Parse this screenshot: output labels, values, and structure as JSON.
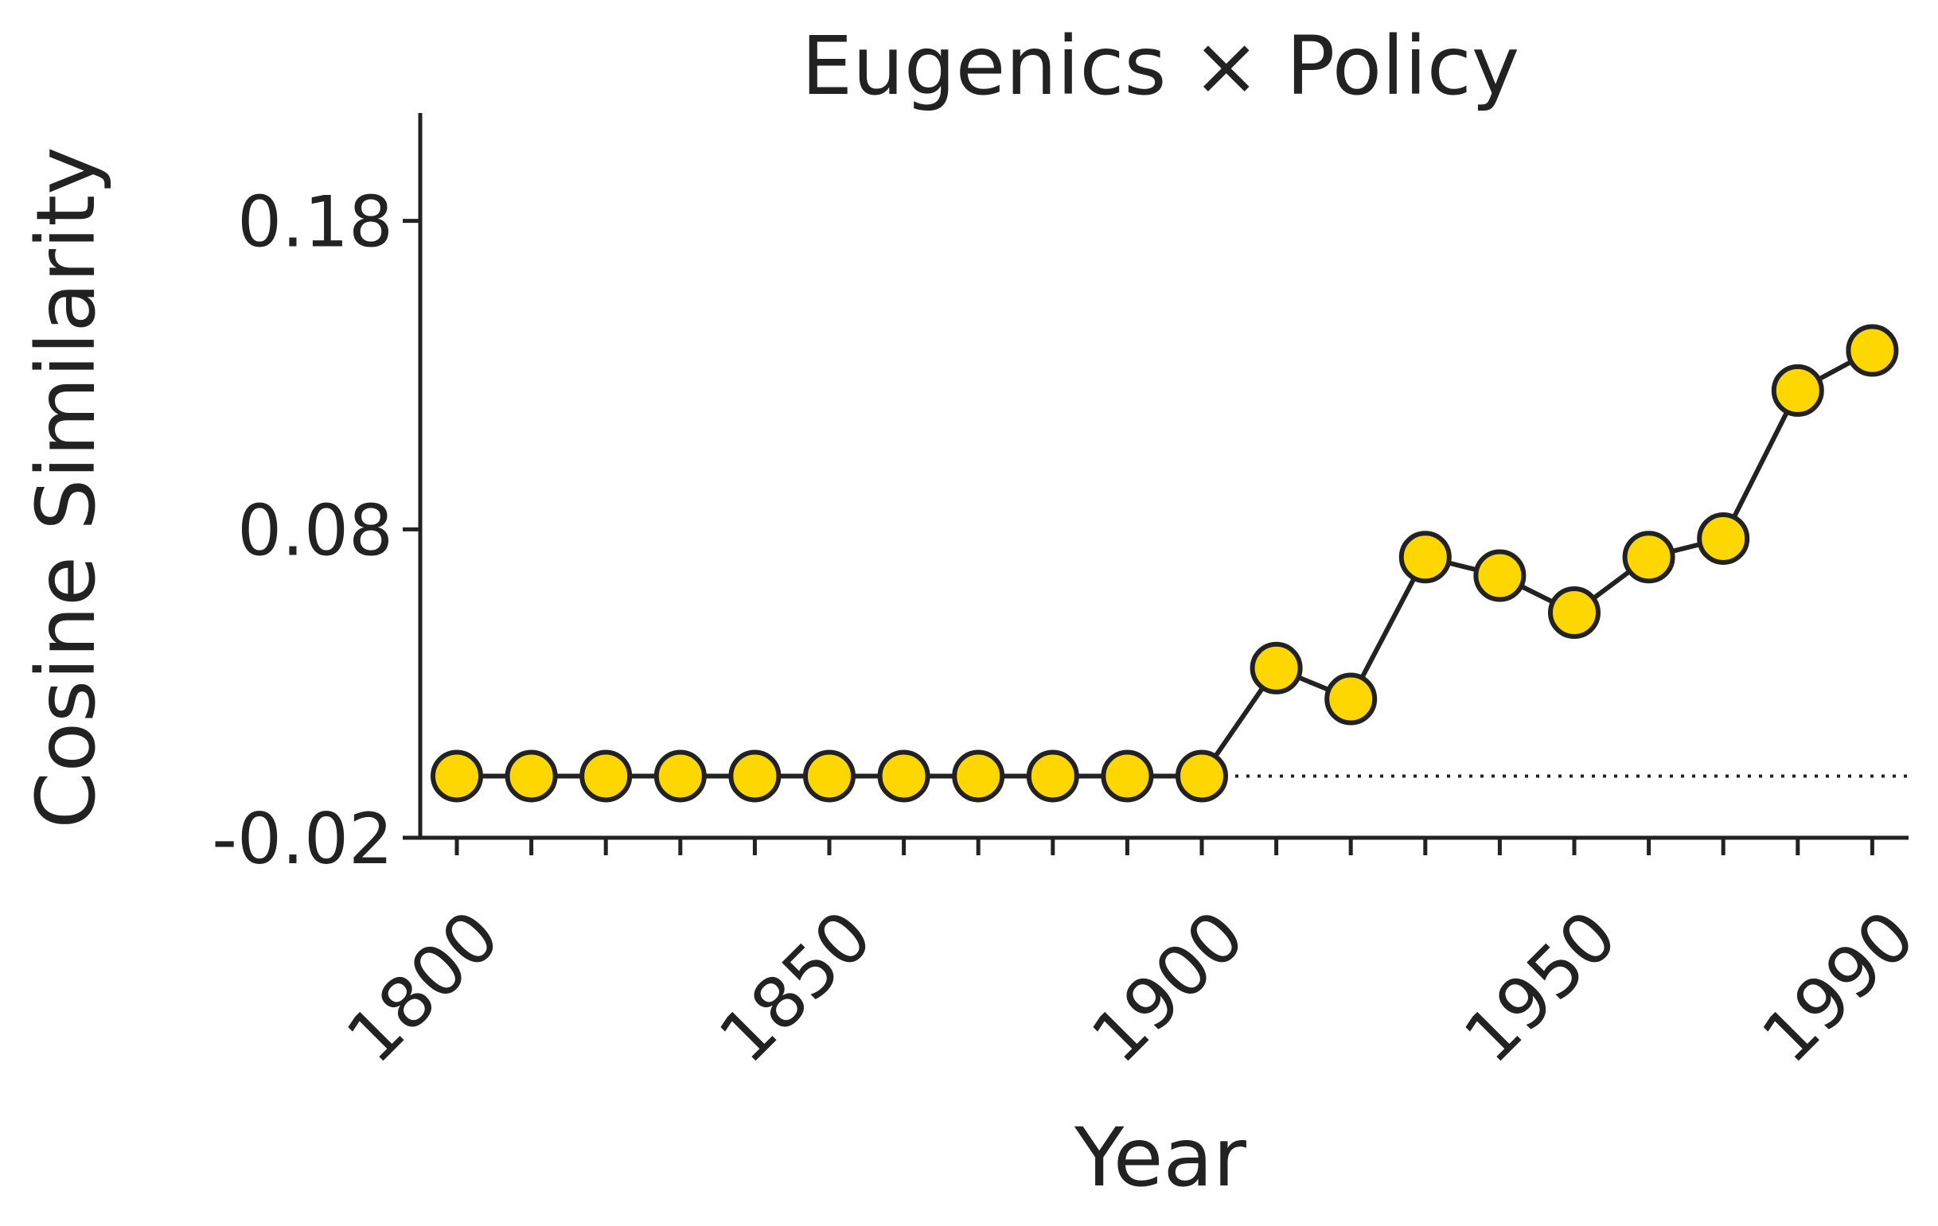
{
  "chart_data": {
    "type": "line",
    "title": "Eugenics × Policy",
    "xlabel": "Year",
    "ylabel": "Cosine Similarity",
    "x": [
      1800,
      1810,
      1820,
      1830,
      1840,
      1850,
      1860,
      1870,
      1880,
      1890,
      1900,
      1910,
      1920,
      1930,
      1940,
      1950,
      1960,
      1970,
      1980,
      1990
    ],
    "series": [
      {
        "values": [
          0.0,
          0.0,
          0.0,
          0.0,
          0.0,
          0.0,
          0.0,
          0.0,
          0.0,
          0.0,
          0.0,
          0.035,
          0.025,
          0.071,
          0.065,
          0.053,
          0.071,
          0.077,
          0.125,
          0.138
        ],
        "color": "#FFD700",
        "marker": "circle"
      }
    ],
    "xticks": [
      1800,
      1850,
      1900,
      1950,
      1990
    ],
    "xtick_labels": [
      "1800",
      "1850",
      "1900",
      "1950",
      "1990"
    ],
    "yticks": [
      -0.02,
      0.08,
      0.18
    ],
    "ytick_labels": [
      "-0.02",
      "0.08",
      "0.18"
    ],
    "xlim": [
      1795,
      1995
    ],
    "ylim": [
      -0.02,
      0.215
    ],
    "reference_line": {
      "y": 0.0,
      "x_start": 1900,
      "x_end": 1995,
      "style": "dotted"
    },
    "grid": false,
    "legend": "none",
    "colors": {
      "marker_fill": "#FFD700",
      "line": "#222222",
      "text": "#222222"
    }
  }
}
